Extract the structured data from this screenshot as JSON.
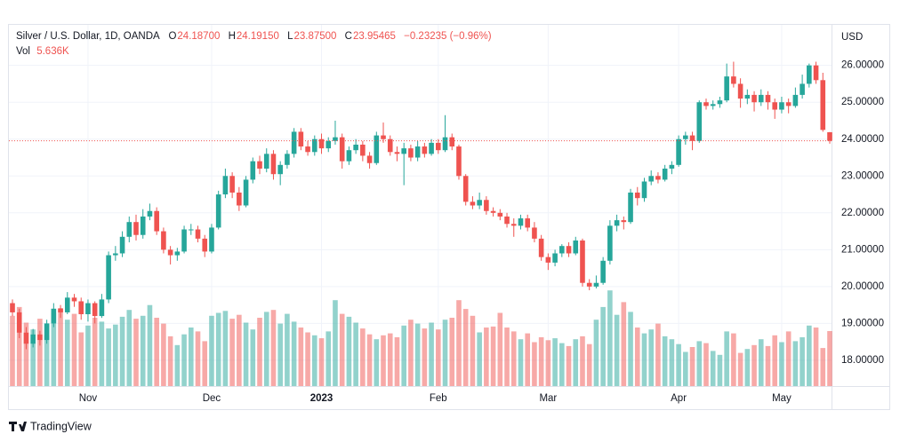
{
  "chart_data": {
    "type": "candlestick",
    "title": "Silver / U.S. Dollar, 1D, OANDA",
    "ohlc_names": [
      "O",
      "H",
      "L",
      "C"
    ],
    "ohlc_printed": [
      "24.18700",
      "24.19150",
      "23.87500",
      "23.95465"
    ],
    "change": "−0.23235 (−0.96%)",
    "volume_name": "Vol",
    "volume_printed": "5.636K",
    "currency": "USD",
    "up_color": "#26a69a",
    "down_color": "#ef5350",
    "grid": true,
    "ylim": [
      17.3,
      27.1
    ],
    "yticks": [
      {
        "value": 18,
        "label": "18.00000"
      },
      {
        "value": 19,
        "label": "19.00000"
      },
      {
        "value": 20,
        "label": "20.00000"
      },
      {
        "value": 21,
        "label": "21.00000"
      },
      {
        "value": 22,
        "label": "22.00000"
      },
      {
        "value": 23,
        "label": "23.00000"
      },
      {
        "value": 24,
        "label": "24.00000"
      },
      {
        "value": 25,
        "label": "25.00000"
      },
      {
        "value": 26,
        "label": "26.00000"
      }
    ],
    "volume_ylim": [
      0,
      10
    ],
    "categories": [
      null,
      null,
      null,
      null,
      null,
      null,
      null,
      null,
      null,
      null,
      null,
      "Nov",
      null,
      null,
      null,
      null,
      null,
      null,
      null,
      null,
      null,
      null,
      null,
      null,
      null,
      null,
      null,
      null,
      null,
      "Dec",
      null,
      null,
      null,
      null,
      null,
      null,
      null,
      null,
      null,
      null,
      null,
      null,
      null,
      null,
      null,
      "2023",
      null,
      null,
      null,
      null,
      null,
      null,
      null,
      null,
      null,
      null,
      null,
      null,
      null,
      null,
      null,
      null,
      "Feb",
      null,
      null,
      null,
      null,
      null,
      null,
      null,
      null,
      null,
      null,
      null,
      null,
      null,
      null,
      null,
      "Mar",
      null,
      null,
      null,
      null,
      null,
      null,
      null,
      null,
      null,
      null,
      null,
      null,
      null,
      null,
      null,
      null,
      null,
      null,
      "Apr",
      null,
      null,
      null,
      null,
      null,
      null,
      null,
      null,
      null,
      null,
      null,
      null,
      null,
      null,
      "May",
      null,
      null,
      null,
      null,
      null,
      null,
      null
    ],
    "candles": [
      [
        19.55,
        19.65,
        19.2,
        19.3
      ],
      [
        19.3,
        19.4,
        18.6,
        18.75
      ],
      [
        18.75,
        18.9,
        18.3,
        18.45
      ],
      [
        18.45,
        18.85,
        18.35,
        18.7
      ],
      [
        18.7,
        18.8,
        18.4,
        18.55
      ],
      [
        18.55,
        19.1,
        18.45,
        19.0
      ],
      [
        19.0,
        19.55,
        18.9,
        19.4
      ],
      [
        19.4,
        19.5,
        19.15,
        19.3
      ],
      [
        19.3,
        19.85,
        19.25,
        19.7
      ],
      [
        19.7,
        19.8,
        19.45,
        19.6
      ],
      [
        19.6,
        19.7,
        19.1,
        19.25
      ],
      [
        19.25,
        19.65,
        19.05,
        19.55
      ],
      [
        19.55,
        19.6,
        19.0,
        19.2
      ],
      [
        19.2,
        19.8,
        19.15,
        19.65
      ],
      [
        19.65,
        20.95,
        19.55,
        20.85
      ],
      [
        20.85,
        21.1,
        20.7,
        20.9
      ],
      [
        20.9,
        21.5,
        20.8,
        21.35
      ],
      [
        21.35,
        21.9,
        21.2,
        21.75
      ],
      [
        21.75,
        21.95,
        21.25,
        21.4
      ],
      [
        21.4,
        22.1,
        21.3,
        21.9
      ],
      [
        21.9,
        22.25,
        21.8,
        22.05
      ],
      [
        22.05,
        22.15,
        21.4,
        21.5
      ],
      [
        21.5,
        21.6,
        20.9,
        21.0
      ],
      [
        21.0,
        21.1,
        20.6,
        20.85
      ],
      [
        20.85,
        21.05,
        20.7,
        20.95
      ],
      [
        20.95,
        21.65,
        20.9,
        21.55
      ],
      [
        21.55,
        21.7,
        21.4,
        21.55
      ],
      [
        21.55,
        21.65,
        21.2,
        21.3
      ],
      [
        21.3,
        21.4,
        20.8,
        20.95
      ],
      [
        20.95,
        21.7,
        20.9,
        21.6
      ],
      [
        21.6,
        22.6,
        21.55,
        22.5
      ],
      [
        22.5,
        23.2,
        22.4,
        23.0
      ],
      [
        23.0,
        23.1,
        22.4,
        22.55
      ],
      [
        22.55,
        22.7,
        22.05,
        22.2
      ],
      [
        22.2,
        23.0,
        22.15,
        22.9
      ],
      [
        22.9,
        23.5,
        22.8,
        23.4
      ],
      [
        23.4,
        23.55,
        23.05,
        23.2
      ],
      [
        23.2,
        23.75,
        23.1,
        23.6
      ],
      [
        23.6,
        23.7,
        22.9,
        23.05
      ],
      [
        23.05,
        23.4,
        22.75,
        23.3
      ],
      [
        23.3,
        23.7,
        23.2,
        23.6
      ],
      [
        23.6,
        24.3,
        23.5,
        24.2
      ],
      [
        24.2,
        24.3,
        23.7,
        23.8
      ],
      [
        23.8,
        23.95,
        23.55,
        23.65
      ],
      [
        23.65,
        24.1,
        23.55,
        24.0
      ],
      [
        24.0,
        24.15,
        23.6,
        23.75
      ],
      [
        23.75,
        24.05,
        23.65,
        23.95
      ],
      [
        23.95,
        24.5,
        23.85,
        24.05
      ],
      [
        24.05,
        24.15,
        23.2,
        23.4
      ],
      [
        23.4,
        23.8,
        23.3,
        23.7
      ],
      [
        23.7,
        24.0,
        23.6,
        23.85
      ],
      [
        23.85,
        23.95,
        23.4,
        23.55
      ],
      [
        23.55,
        23.65,
        23.2,
        23.35
      ],
      [
        23.35,
        24.2,
        23.3,
        24.1
      ],
      [
        24.1,
        24.45,
        23.9,
        24.0
      ],
      [
        24.0,
        24.1,
        23.55,
        23.65
      ],
      [
        23.65,
        23.8,
        23.4,
        23.6
      ],
      [
        23.6,
        23.9,
        22.75,
        23.75
      ],
      [
        23.75,
        23.85,
        23.4,
        23.5
      ],
      [
        23.5,
        23.95,
        23.4,
        23.8
      ],
      [
        23.8,
        23.9,
        23.5,
        23.6
      ],
      [
        23.6,
        24.0,
        23.55,
        23.9
      ],
      [
        23.9,
        24.0,
        23.6,
        23.7
      ],
      [
        23.7,
        24.65,
        23.65,
        24.05
      ],
      [
        24.05,
        24.15,
        23.7,
        23.8
      ],
      [
        23.8,
        23.85,
        22.9,
        23.0
      ],
      [
        23.0,
        23.05,
        22.2,
        22.3
      ],
      [
        22.3,
        22.45,
        22.1,
        22.2
      ],
      [
        22.2,
        22.55,
        22.1,
        22.35
      ],
      [
        22.35,
        22.45,
        21.95,
        22.05
      ],
      [
        22.05,
        22.15,
        21.9,
        22.0
      ],
      [
        22.0,
        22.1,
        21.8,
        21.9
      ],
      [
        21.9,
        22.0,
        21.6,
        21.7
      ],
      [
        21.7,
        21.85,
        21.35,
        21.65
      ],
      [
        21.65,
        21.95,
        21.55,
        21.85
      ],
      [
        21.85,
        21.95,
        21.5,
        21.6
      ],
      [
        21.6,
        21.75,
        21.2,
        21.3
      ],
      [
        21.3,
        21.4,
        20.7,
        20.8
      ],
      [
        20.8,
        20.9,
        20.45,
        20.65
      ],
      [
        20.65,
        21.0,
        20.55,
        20.9
      ],
      [
        20.9,
        21.15,
        20.8,
        21.1
      ],
      [
        21.1,
        21.2,
        20.8,
        20.9
      ],
      [
        20.9,
        21.35,
        20.85,
        21.25
      ],
      [
        21.25,
        21.3,
        20.0,
        20.1
      ],
      [
        20.1,
        20.2,
        19.9,
        20.0
      ],
      [
        20.0,
        20.3,
        19.95,
        20.1
      ],
      [
        20.1,
        20.8,
        20.05,
        20.7
      ],
      [
        20.7,
        21.8,
        20.6,
        21.65
      ],
      [
        21.65,
        21.95,
        21.5,
        21.8
      ],
      [
        21.8,
        21.9,
        21.55,
        21.75
      ],
      [
        21.75,
        22.65,
        21.7,
        22.55
      ],
      [
        22.55,
        22.7,
        22.2,
        22.4
      ],
      [
        22.4,
        22.95,
        22.3,
        22.85
      ],
      [
        22.85,
        23.15,
        22.75,
        23.0
      ],
      [
        23.0,
        23.1,
        22.8,
        22.9
      ],
      [
        22.9,
        23.3,
        22.85,
        23.2
      ],
      [
        23.2,
        23.4,
        23.05,
        23.3
      ],
      [
        23.3,
        24.1,
        23.25,
        24.0
      ],
      [
        24.0,
        24.2,
        23.85,
        24.1
      ],
      [
        24.1,
        24.2,
        23.7,
        23.95
      ],
      [
        23.95,
        25.05,
        23.9,
        25.0
      ],
      [
        25.0,
        25.1,
        24.8,
        24.9
      ],
      [
        24.9,
        25.05,
        24.8,
        24.95
      ],
      [
        24.95,
        25.15,
        24.85,
        25.05
      ],
      [
        25.05,
        26.05,
        25.0,
        25.7
      ],
      [
        25.7,
        26.1,
        25.4,
        25.5
      ],
      [
        25.5,
        25.65,
        24.85,
        25.1
      ],
      [
        25.1,
        25.35,
        24.95,
        25.2
      ],
      [
        25.2,
        25.3,
        24.75,
        25.0
      ],
      [
        25.0,
        25.35,
        24.9,
        25.2
      ],
      [
        25.2,
        25.3,
        24.8,
        25.0
      ],
      [
        25.0,
        25.1,
        24.55,
        24.8
      ],
      [
        24.8,
        25.15,
        24.7,
        25.0
      ],
      [
        25.0,
        25.1,
        24.7,
        24.9
      ],
      [
        24.9,
        25.4,
        24.85,
        25.2
      ],
      [
        25.2,
        25.75,
        25.1,
        25.5
      ],
      [
        25.5,
        26.05,
        25.4,
        26.0
      ],
      [
        26.0,
        26.1,
        25.5,
        25.6
      ],
      [
        25.6,
        25.8,
        24.2,
        24.25
      ],
      [
        24.187,
        24.1915,
        23.875,
        23.95465
      ]
    ],
    "volumes": [
      7.2,
      8.1,
      6.5,
      5.8,
      6.9,
      5.2,
      7.5,
      8.0,
      6.8,
      7.4,
      5.5,
      6.2,
      7.0,
      6.6,
      5.9,
      6.3,
      7.1,
      7.8,
      6.9,
      7.2,
      8.3,
      7.0,
      6.4,
      5.1,
      4.2,
      5.3,
      6.0,
      5.6,
      4.6,
      7.2,
      7.5,
      7.7,
      6.9,
      7.3,
      6.5,
      5.8,
      7.0,
      7.6,
      7.8,
      6.4,
      7.4,
      6.6,
      6.0,
      5.5,
      5.2,
      4.9,
      5.6,
      8.8,
      7.4,
      7.1,
      6.5,
      5.9,
      5.3,
      4.8,
      5.2,
      5.4,
      5.0,
      6.2,
      6.8,
      6.4,
      5.9,
      6.5,
      5.8,
      6.8,
      7.0,
      8.8,
      7.9,
      7.2,
      5.5,
      6.0,
      6.1,
      7.5,
      6.0,
      5.6,
      4.8,
      5.4,
      4.5,
      5.0,
      4.7,
      4.9,
      4.4,
      4.1,
      4.8,
      5.1,
      4.3,
      6.8,
      8.1,
      9.8,
      7.3,
      8.6,
      7.6,
      6.0,
      5.4,
      5.8,
      6.4,
      5.1,
      4.8,
      4.3,
      3.5,
      4.0,
      4.6,
      4.4,
      3.6,
      3.2,
      5.6,
      5.4,
      3.4,
      3.8,
      4.2,
      4.8,
      4.1,
      5.2,
      4.5,
      5.6,
      4.6,
      5.0,
      6.2,
      6.0,
      3.9,
      5.636
    ]
  },
  "footer": {
    "brand": "TradingView"
  }
}
